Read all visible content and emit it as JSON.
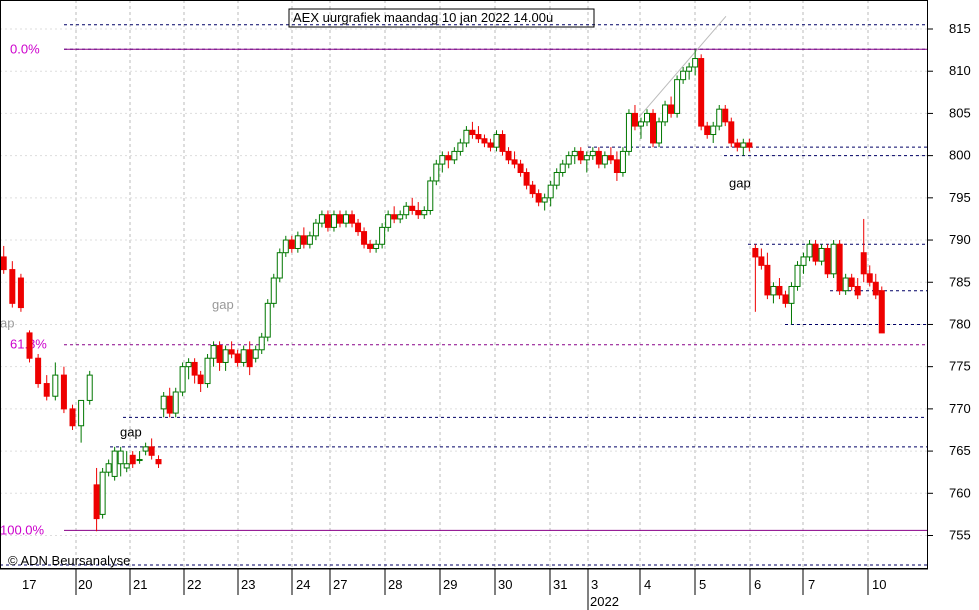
{
  "chart_data": {
    "type": "candlestick",
    "title": "AEX uurgrafiek maandag 10 jan 2022 14.00u",
    "copyright": "© ADN Beursanalyse",
    "year_label": "2022",
    "ylim": [
      750,
      818
    ],
    "y_ticks": [
      755,
      760,
      765,
      770,
      775,
      780,
      785,
      790,
      795,
      800,
      805,
      810,
      815
    ],
    "x_day_labels": [
      "17",
      "20",
      "21",
      "22",
      "23",
      "24",
      "27",
      "28",
      "29",
      "30",
      "31",
      "3",
      "4",
      "5",
      "6",
      "7",
      "10"
    ],
    "fib_levels": [
      {
        "label": "0.0%",
        "value": 812.6,
        "color": "#cc00cc"
      },
      {
        "label": "61.8%",
        "value": 777.6,
        "color": "#cc00cc"
      },
      {
        "label": "100.0%",
        "value": 755.6,
        "color": "#cc00cc"
      }
    ],
    "support_resistance_lines": [
      815.5,
      812.6,
      801.0,
      800.0,
      789.5,
      784.0,
      780.0,
      769.0,
      765.5,
      751.5
    ],
    "annotations": [
      {
        "text": "gap",
        "x_day": "21",
        "value": 767.2,
        "color": "#000000"
      },
      {
        "text": "gap",
        "x_day": "22",
        "value": 782.3,
        "color": "#999999"
      },
      {
        "text": "gap",
        "x_day": "6",
        "value": 796.7,
        "color": "#000000"
      },
      {
        "text": "ap",
        "x_day": "17",
        "value": 780.1,
        "color": "#999999"
      }
    ],
    "trendline": {
      "from": [
        13.0,
        804.6
      ],
      "to": [
        18.3,
        816.5
      ]
    },
    "candles": [
      [
        0.2,
        788.0,
        789.3,
        786.0,
        786.5
      ],
      [
        1.2,
        786.5,
        787.5,
        782.0,
        782.5
      ],
      [
        2.2,
        785.5,
        786.0,
        781.5,
        782.0
      ],
      [
        3.2,
        779.0,
        779.3,
        775.5,
        776.0
      ],
      [
        4.2,
        776.0,
        776.5,
        772.5,
        773.0
      ],
      [
        5.2,
        773.0,
        774.0,
        771.0,
        771.5
      ],
      [
        6.2,
        771.5,
        775.5,
        771.0,
        774.0
      ],
      [
        7.2,
        774.0,
        775.0,
        769.5,
        770.0
      ],
      [
        8.2,
        770.0,
        770.5,
        767.5,
        768.0
      ],
      [
        9.2,
        768.0,
        771.0,
        766.0,
        771.0
      ],
      [
        10.2,
        771.0,
        774.5,
        770.5,
        774.0
      ],
      [
        11.0,
        761.0,
        763.0,
        755.5,
        757.0
      ],
      [
        11.7,
        757.5,
        763.0,
        757.0,
        762.5
      ],
      [
        12.4,
        762.5,
        764.0,
        762.0,
        763.5
      ],
      [
        13.1,
        762.0,
        765.5,
        761.5,
        765.0
      ],
      [
        13.8,
        763.5,
        765.5,
        762.0,
        765.0
      ],
      [
        14.5,
        763.0,
        765.0,
        762.5,
        763.5
      ],
      [
        15.2,
        764.5,
        765.0,
        763.0,
        763.5
      ],
      [
        16.0,
        764.0,
        765.0,
        763.5,
        764.0
      ],
      [
        16.7,
        765.0,
        766.0,
        764.5,
        765.5
      ],
      [
        17.4,
        765.5,
        766.5,
        764.0,
        764.5
      ],
      [
        18.2,
        764.0,
        764.5,
        763.0,
        763.5
      ],
      [
        18.8,
        770.0,
        772.0,
        769.0,
        771.5
      ],
      [
        19.5,
        771.5,
        772.5,
        769.0,
        769.5
      ],
      [
        20.2,
        769.5,
        772.5,
        769.0,
        772.0
      ],
      [
        21.0,
        772.0,
        775.5,
        771.5,
        775.0
      ],
      [
        21.7,
        775.0,
        776.0,
        773.5,
        775.5
      ],
      [
        22.4,
        775.5,
        776.0,
        773.0,
        774.0
      ],
      [
        23.1,
        774.0,
        774.5,
        772.0,
        773.0
      ],
      [
        23.9,
        773.0,
        776.5,
        772.5,
        776.0
      ],
      [
        24.6,
        776.0,
        778.0,
        775.0,
        777.5
      ],
      [
        25.3,
        777.5,
        778.0,
        774.5,
        775.5
      ],
      [
        26.0,
        775.5,
        777.5,
        774.5,
        777.0
      ],
      [
        26.7,
        777.0,
        778.0,
        776.0,
        776.5
      ],
      [
        27.4,
        776.5,
        777.0,
        775.0,
        775.5
      ],
      [
        28.1,
        775.5,
        777.5,
        775.0,
        777.0
      ],
      [
        28.8,
        777.0,
        778.0,
        774.0,
        775.0
      ],
      [
        29.5,
        776.0,
        777.5,
        775.5,
        777.0
      ],
      [
        30.2,
        777.0,
        779.0,
        776.5,
        778.5
      ],
      [
        30.9,
        778.5,
        783.0,
        778.0,
        782.5
      ],
      [
        31.6,
        782.5,
        786.0,
        782.0,
        785.5
      ],
      [
        32.3,
        785.5,
        789.0,
        785.0,
        788.5
      ],
      [
        33.0,
        788.5,
        790.5,
        788.0,
        790.0
      ],
      [
        33.7,
        790.0,
        790.5,
        788.5,
        789.0
      ],
      [
        34.4,
        789.0,
        791.0,
        788.5,
        790.5
      ],
      [
        35.1,
        790.5,
        791.5,
        789.0,
        789.5
      ],
      [
        35.8,
        789.5,
        791.0,
        789.0,
        790.5
      ],
      [
        36.5,
        790.5,
        792.5,
        790.0,
        792.0
      ],
      [
        37.2,
        792.0,
        793.5,
        791.5,
        793.0
      ],
      [
        37.9,
        793.0,
        793.5,
        791.0,
        791.5
      ],
      [
        38.6,
        791.5,
        793.5,
        791.0,
        793.0
      ],
      [
        39.3,
        793.0,
        793.5,
        791.5,
        792.0
      ],
      [
        40.0,
        792.0,
        793.5,
        791.5,
        793.0
      ],
      [
        40.7,
        793.0,
        793.5,
        791.5,
        792.0
      ],
      [
        41.4,
        792.0,
        792.5,
        790.5,
        791.0
      ],
      [
        42.1,
        791.0,
        791.5,
        789.0,
        789.5
      ],
      [
        42.8,
        789.5,
        790.0,
        788.5,
        789.0
      ],
      [
        43.5,
        789.0,
        790.0,
        788.5,
        789.5
      ],
      [
        44.2,
        789.5,
        792.0,
        789.0,
        791.5
      ],
      [
        44.9,
        791.5,
        793.5,
        791.0,
        793.0
      ],
      [
        45.6,
        793.0,
        794.0,
        792.0,
        792.5
      ],
      [
        46.3,
        792.5,
        793.5,
        792.0,
        793.0
      ],
      [
        47.0,
        793.0,
        794.5,
        792.5,
        794.0
      ],
      [
        47.7,
        794.0,
        795.0,
        793.0,
        793.5
      ],
      [
        48.4,
        793.5,
        794.5,
        792.5,
        793.0
      ],
      [
        49.1,
        793.0,
        794.0,
        792.5,
        793.5
      ],
      [
        49.8,
        793.5,
        797.5,
        793.0,
        797.0
      ],
      [
        50.5,
        797.0,
        799.5,
        796.5,
        799.0
      ],
      [
        51.2,
        799.0,
        800.5,
        798.0,
        800.0
      ],
      [
        51.9,
        800.0,
        800.5,
        798.5,
        799.5
      ],
      [
        52.6,
        799.5,
        801.0,
        799.0,
        800.5
      ],
      [
        53.3,
        800.5,
        802.0,
        800.0,
        801.5
      ],
      [
        54.0,
        801.5,
        803.5,
        801.0,
        803.0
      ],
      [
        54.7,
        803.0,
        804.0,
        802.0,
        802.5
      ],
      [
        55.4,
        802.5,
        803.5,
        801.5,
        802.0
      ],
      [
        56.1,
        802.0,
        802.5,
        801.0,
        801.5
      ],
      [
        56.8,
        801.5,
        802.0,
        800.5,
        801.0
      ],
      [
        57.5,
        801.0,
        803.0,
        800.5,
        802.5
      ],
      [
        58.2,
        802.5,
        803.0,
        800.0,
        800.5
      ],
      [
        58.9,
        800.5,
        801.0,
        799.0,
        799.5
      ],
      [
        59.6,
        799.5,
        800.5,
        798.5,
        799.0
      ],
      [
        60.3,
        799.0,
        799.5,
        797.5,
        798.0
      ],
      [
        61.0,
        798.0,
        798.5,
        796.0,
        796.5
      ],
      [
        61.7,
        796.5,
        797.0,
        795.0,
        795.5
      ],
      [
        62.4,
        795.5,
        796.0,
        794.0,
        794.5
      ],
      [
        63.1,
        794.5,
        795.5,
        793.5,
        795.0
      ],
      [
        63.8,
        795.0,
        797.0,
        794.0,
        796.5
      ],
      [
        64.5,
        796.5,
        798.5,
        796.0,
        798.0
      ],
      [
        65.2,
        798.0,
        799.5,
        797.5,
        799.0
      ],
      [
        65.9,
        799.0,
        800.5,
        798.5,
        800.0
      ],
      [
        66.6,
        800.0,
        801.0,
        799.0,
        800.5
      ],
      [
        67.3,
        800.5,
        801.0,
        799.0,
        799.5
      ],
      [
        68.0,
        799.5,
        800.5,
        798.0,
        800.0
      ],
      [
        68.7,
        800.0,
        801.0,
        799.5,
        800.5
      ],
      [
        69.4,
        800.5,
        801.0,
        798.5,
        799.0
      ],
      [
        70.1,
        799.0,
        800.5,
        798.5,
        800.0
      ],
      [
        70.8,
        800.0,
        801.0,
        799.0,
        799.5
      ],
      [
        71.5,
        799.5,
        800.5,
        797.0,
        798.0
      ],
      [
        72.2,
        798.0,
        801.0,
        797.5,
        800.5
      ],
      [
        72.9,
        800.5,
        805.5,
        800.0,
        805.0
      ],
      [
        73.6,
        805.0,
        806.0,
        803.0,
        803.5
      ],
      [
        74.3,
        803.5,
        804.5,
        802.0,
        804.0
      ],
      [
        75.0,
        804.0,
        805.5,
        803.5,
        805.0
      ],
      [
        75.7,
        805.0,
        805.5,
        801.0,
        801.5
      ],
      [
        76.4,
        801.5,
        804.5,
        801.0,
        804.0
      ],
      [
        77.1,
        804.0,
        806.5,
        803.5,
        806.0
      ],
      [
        77.8,
        806.0,
        807.0,
        804.5,
        805.0
      ],
      [
        78.5,
        805.0,
        809.5,
        804.5,
        809.0
      ],
      [
        79.2,
        809.0,
        810.5,
        808.5,
        810.0
      ],
      [
        79.9,
        810.0,
        811.0,
        809.0,
        810.5
      ],
      [
        80.6,
        810.5,
        812.6,
        809.5,
        811.5
      ],
      [
        81.3,
        811.5,
        812.0,
        803.0,
        803.5
      ],
      [
        82.0,
        803.5,
        804.0,
        802.0,
        802.5
      ],
      [
        82.7,
        802.5,
        804.0,
        801.5,
        803.5
      ],
      [
        83.4,
        803.5,
        806.0,
        803.0,
        805.5
      ],
      [
        84.1,
        805.5,
        806.0,
        803.5,
        804.0
      ],
      [
        84.8,
        804.0,
        804.5,
        801.0,
        801.5
      ],
      [
        85.5,
        801.5,
        802.0,
        800.5,
        801.0
      ],
      [
        86.2,
        801.0,
        802.0,
        800.0,
        801.5
      ],
      [
        86.9,
        801.5,
        802.0,
        800.5,
        801.0
      ],
      [
        87.6,
        789.0,
        789.5,
        781.5,
        788.0
      ],
      [
        88.3,
        788.0,
        789.0,
        786.5,
        787.0
      ],
      [
        89.0,
        787.0,
        788.5,
        783.0,
        783.5
      ],
      [
        89.7,
        783.5,
        785.0,
        782.5,
        784.5
      ],
      [
        90.4,
        784.5,
        785.5,
        783.0,
        783.5
      ],
      [
        91.1,
        783.5,
        784.0,
        782.0,
        782.5
      ],
      [
        91.8,
        782.5,
        785.0,
        780.0,
        784.5
      ],
      [
        92.5,
        784.5,
        787.5,
        784.0,
        787.0
      ],
      [
        93.2,
        787.0,
        788.5,
        786.0,
        788.0
      ],
      [
        93.9,
        788.0,
        790.0,
        787.5,
        789.5
      ],
      [
        94.6,
        789.5,
        790.0,
        787.0,
        787.5
      ],
      [
        95.3,
        787.5,
        789.5,
        787.0,
        789.0
      ],
      [
        96.0,
        789.0,
        789.5,
        785.5,
        786.0
      ],
      [
        96.7,
        786.0,
        790.0,
        785.5,
        789.5
      ],
      [
        97.4,
        789.5,
        790.0,
        783.5,
        784.0
      ],
      [
        98.1,
        784.0,
        786.0,
        783.5,
        785.5
      ],
      [
        98.8,
        785.5,
        786.0,
        784.0,
        784.5
      ],
      [
        99.5,
        784.5,
        785.5,
        783.0,
        783.5
      ],
      [
        100.2,
        788.5,
        792.5,
        785.0,
        786.0
      ],
      [
        100.9,
        786.0,
        787.0,
        784.5,
        785.0
      ],
      [
        101.6,
        785.0,
        786.0,
        783.0,
        783.5
      ],
      [
        102.3,
        784.0,
        784.5,
        779.0,
        779.0
      ]
    ]
  }
}
